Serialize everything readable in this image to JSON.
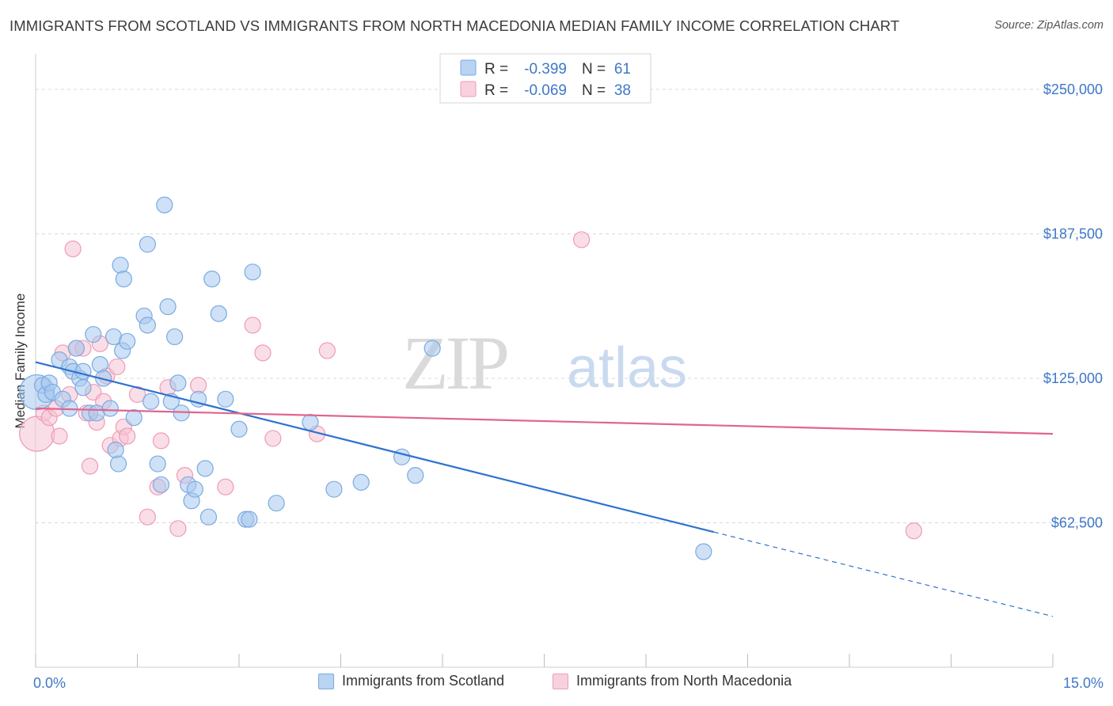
{
  "title": "IMMIGRANTS FROM SCOTLAND VS IMMIGRANTS FROM NORTH MACEDONIA MEDIAN FAMILY INCOME CORRELATION CHART",
  "source": "Source: ZipAtlas.com",
  "watermark": {
    "zip": "ZIP",
    "atlas": "atlas"
  },
  "colors": {
    "blue_fill": "#a8c8ef",
    "blue_stroke": "#7aaae0",
    "blue_line": "#2f72cf",
    "pink_fill": "#f6c3d4",
    "pink_stroke": "#ee9bb6",
    "pink_line": "#e0658d",
    "axis_label": "#3e78c8",
    "grid": "#d8d8d8"
  },
  "chart_data": {
    "type": "scatter",
    "title": "IMMIGRANTS FROM SCOTLAND VS IMMIGRANTS FROM NORTH MACEDONIA MEDIAN FAMILY INCOME CORRELATION CHART",
    "xlabel": "",
    "ylabel": "Median Family Income",
    "xlim": [
      0,
      15
    ],
    "ylim": [
      0,
      262000
    ],
    "x_tick_labels": {
      "min": "0.0%",
      "max": "15.0%"
    },
    "y_ticks": [
      {
        "value": 62500,
        "label": "$62,500"
      },
      {
        "value": 125000,
        "label": "$125,000"
      },
      {
        "value": 187500,
        "label": "$187,500"
      },
      {
        "value": 250000,
        "label": "$250,000"
      }
    ],
    "legend": [
      {
        "r_label": "R =",
        "r_value": "-0.399",
        "n_label": "N =",
        "n_value": "61"
      },
      {
        "r_label": "R =",
        "r_value": "-0.069",
        "n_label": "N =",
        "n_value": "38"
      }
    ],
    "series": [
      {
        "name": "Immigrants from Scotland",
        "color": "#a8c8ef",
        "trend": {
          "x0": 0,
          "y0": 132000,
          "x1": 10,
          "y1": 58500,
          "x_dashed_end": 15,
          "y_dashed_end": 22000
        },
        "points": [
          [
            0.02,
            119000,
            22
          ],
          [
            0.1,
            122000,
            10
          ],
          [
            0.15,
            118000,
            10
          ],
          [
            0.2,
            123000,
            10
          ],
          [
            0.25,
            119000,
            10
          ],
          [
            0.35,
            133000,
            10
          ],
          [
            0.4,
            116000,
            10
          ],
          [
            0.5,
            112000,
            10
          ],
          [
            0.5,
            130000,
            10
          ],
          [
            0.55,
            128000,
            10
          ],
          [
            0.6,
            138000,
            10
          ],
          [
            0.65,
            125000,
            10
          ],
          [
            0.7,
            128000,
            10
          ],
          [
            0.8,
            110000,
            10
          ],
          [
            0.85,
            144000,
            10
          ],
          [
            0.9,
            110000,
            10
          ],
          [
            0.95,
            131000,
            10
          ],
          [
            1.0,
            125000,
            10
          ],
          [
            1.1,
            112000,
            10
          ],
          [
            1.15,
            143000,
            10
          ],
          [
            1.18,
            94000,
            10
          ],
          [
            1.22,
            88000,
            10
          ],
          [
            1.25,
            174000,
            10
          ],
          [
            1.28,
            137000,
            10
          ],
          [
            1.3,
            168000,
            10
          ],
          [
            1.45,
            108000,
            10
          ],
          [
            1.6,
            152000,
            10
          ],
          [
            1.65,
            148000,
            10
          ],
          [
            1.7,
            115000,
            10
          ],
          [
            1.8,
            88000,
            10
          ],
          [
            1.85,
            79000,
            10
          ],
          [
            1.9,
            200000,
            10
          ],
          [
            1.95,
            156000,
            10
          ],
          [
            2.0,
            115000,
            10
          ],
          [
            2.05,
            143000,
            10
          ],
          [
            2.1,
            123000,
            10
          ],
          [
            2.15,
            110000,
            10
          ],
          [
            2.25,
            79000,
            10
          ],
          [
            2.3,
            72000,
            10
          ],
          [
            2.35,
            77000,
            10
          ],
          [
            2.4,
            116000,
            10
          ],
          [
            2.5,
            86000,
            10
          ],
          [
            2.55,
            65000,
            10
          ],
          [
            2.6,
            168000,
            10
          ],
          [
            2.7,
            153000,
            10
          ],
          [
            2.8,
            116000,
            10
          ],
          [
            3.0,
            103000,
            10
          ],
          [
            3.1,
            64000,
            10
          ],
          [
            3.15,
            64000,
            10
          ],
          [
            3.2,
            171000,
            10
          ],
          [
            3.55,
            71000,
            10
          ],
          [
            4.05,
            106000,
            10
          ],
          [
            4.4,
            77000,
            10
          ],
          [
            4.8,
            80000,
            10
          ],
          [
            5.4,
            91000,
            10
          ],
          [
            5.6,
            83000,
            10
          ],
          [
            5.85,
            138000,
            10
          ],
          [
            9.85,
            50000,
            10
          ],
          [
            1.65,
            183000,
            10
          ],
          [
            0.7,
            121000,
            10
          ],
          [
            1.35,
            141000,
            10
          ]
        ]
      },
      {
        "name": "Immigrants from North Macedonia",
        "color": "#f6c3d4",
        "trend": {
          "x0": 0,
          "y0": 112000,
          "x1": 15,
          "y1": 101000
        },
        "points": [
          [
            0.02,
            101000,
            22
          ],
          [
            0.12,
            110000,
            10
          ],
          [
            0.2,
            108000,
            10
          ],
          [
            0.3,
            112000,
            10
          ],
          [
            0.35,
            100000,
            10
          ],
          [
            0.4,
            136000,
            10
          ],
          [
            0.5,
            118000,
            10
          ],
          [
            0.55,
            181000,
            10
          ],
          [
            0.6,
            138000,
            10
          ],
          [
            0.7,
            138000,
            10
          ],
          [
            0.75,
            110000,
            10
          ],
          [
            0.8,
            87000,
            10
          ],
          [
            0.85,
            119000,
            10
          ],
          [
            0.9,
            106000,
            10
          ],
          [
            0.95,
            140000,
            10
          ],
          [
            1.0,
            115000,
            10
          ],
          [
            1.05,
            126000,
            10
          ],
          [
            1.1,
            96000,
            10
          ],
          [
            1.2,
            130000,
            10
          ],
          [
            1.25,
            99000,
            10
          ],
          [
            1.3,
            104000,
            10
          ],
          [
            1.35,
            100000,
            10
          ],
          [
            1.5,
            118000,
            10
          ],
          [
            1.65,
            65000,
            10
          ],
          [
            1.8,
            78000,
            10
          ],
          [
            1.85,
            98000,
            10
          ],
          [
            1.95,
            121000,
            10
          ],
          [
            2.1,
            60000,
            10
          ],
          [
            2.2,
            83000,
            10
          ],
          [
            2.4,
            122000,
            10
          ],
          [
            2.8,
            78000,
            10
          ],
          [
            3.2,
            148000,
            10
          ],
          [
            3.35,
            136000,
            10
          ],
          [
            3.5,
            99000,
            10
          ],
          [
            4.15,
            101000,
            10
          ],
          [
            4.3,
            137000,
            10
          ],
          [
            8.05,
            185000,
            10
          ],
          [
            12.95,
            59000,
            10
          ]
        ]
      }
    ]
  }
}
